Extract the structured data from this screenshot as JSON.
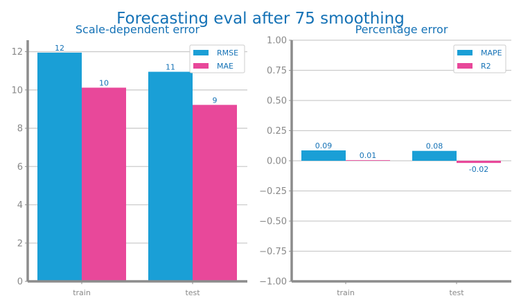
{
  "figure": {
    "title": "Forecasting eval after 75 smoothing"
  },
  "colors": {
    "series1": "#1a9fd6",
    "series2": "#e8489a",
    "grid": "#cccccc",
    "axis": "#8c8c8c",
    "text": "#1572b6",
    "tick": "#888888"
  },
  "chart_data": [
    {
      "type": "bar",
      "title": "Scale-dependent error",
      "categories": [
        "train",
        "test"
      ],
      "series": [
        {
          "name": "RMSE",
          "values": [
            11.95,
            10.95
          ],
          "labels": [
            "12",
            "11"
          ]
        },
        {
          "name": "MAE",
          "values": [
            10.12,
            9.22
          ],
          "labels": [
            "10",
            "9"
          ]
        }
      ],
      "ylim": [
        0,
        12.6
      ],
      "yticks": [
        0,
        2,
        4,
        6,
        8,
        10,
        12
      ],
      "ytick_labels": [
        "0",
        "2",
        "4",
        "6",
        "8",
        "10",
        "12"
      ],
      "grid": true,
      "legend": "top-right"
    },
    {
      "type": "bar",
      "title": "Percentage error",
      "categories": [
        "train",
        "test"
      ],
      "series": [
        {
          "name": "MAPE",
          "values": [
            0.086,
            0.082
          ],
          "labels": [
            "0.09",
            "0.08"
          ]
        },
        {
          "name": "R2",
          "values": [
            0.005,
            -0.018
          ],
          "labels": [
            "0.01",
            "-0.02"
          ]
        }
      ],
      "ylim": [
        -1.0,
        1.0
      ],
      "yticks": [
        -1.0,
        -0.75,
        -0.5,
        -0.25,
        0.0,
        0.25,
        0.5,
        0.75,
        1.0
      ],
      "ytick_labels": [
        "−1.00",
        "−0.75",
        "−0.50",
        "−0.25",
        "0.00",
        "0.25",
        "0.50",
        "0.75",
        "1.00"
      ],
      "grid": true,
      "legend": "top-right"
    }
  ]
}
